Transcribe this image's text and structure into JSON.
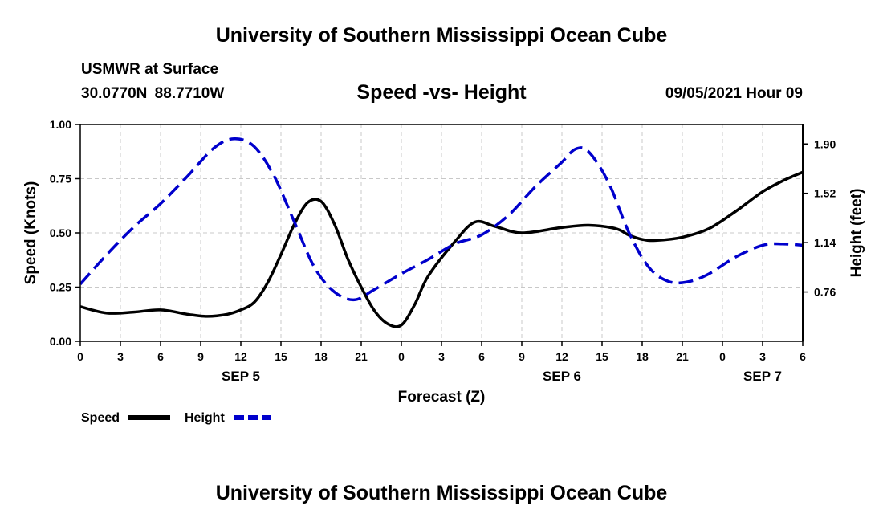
{
  "header": {
    "title": "University of Southern Mississippi Ocean Cube",
    "station": "USMWR at Surface",
    "coordinates": "30.0770N  88.7710W",
    "datetime": "09/05/2021 Hour 09"
  },
  "footer": {
    "title": "University of Southern Mississippi Ocean Cube"
  },
  "colors": {
    "speed": "#000000",
    "height": "#0000cc",
    "grid": "#c8c8c8"
  },
  "chart_data": {
    "type": "line",
    "title": "Speed -vs- Height",
    "xlabel": "Forecast (Z)",
    "ylabel": "Speed (Knots)",
    "y2label": "Height (feet)",
    "x_hours": [
      0,
      54
    ],
    "x_ticks": [
      "0",
      "3",
      "6",
      "9",
      "12",
      "15",
      "18",
      "21",
      "0",
      "3",
      "6",
      "9",
      "12",
      "15",
      "18",
      "21",
      "0",
      "3",
      "6"
    ],
    "date_labels": [
      {
        "label": "SEP 5",
        "hour": 12
      },
      {
        "label": "SEP 6",
        "hour": 36
      },
      {
        "label": "SEP 7",
        "hour": 51
      }
    ],
    "ylim": [
      0,
      1.0
    ],
    "y_ticks": [
      "0.00",
      "0.25",
      "0.50",
      "0.75",
      "1.00"
    ],
    "y2lim": [
      0.38,
      2.05
    ],
    "y2_ticks": [
      "0.76",
      "1.14",
      "1.52",
      "1.90"
    ],
    "legend": [
      "Speed",
      "Height"
    ],
    "series": [
      {
        "name": "Speed",
        "axis": "left",
        "style": "solid",
        "points": [
          [
            0,
            0.16
          ],
          [
            2,
            0.13
          ],
          [
            4,
            0.135
          ],
          [
            6,
            0.145
          ],
          [
            8,
            0.125
          ],
          [
            9.5,
            0.115
          ],
          [
            11,
            0.125
          ],
          [
            12,
            0.145
          ],
          [
            13,
            0.18
          ],
          [
            14,
            0.27
          ],
          [
            15,
            0.4
          ],
          [
            16,
            0.54
          ],
          [
            17,
            0.64
          ],
          [
            18,
            0.645
          ],
          [
            19,
            0.54
          ],
          [
            20,
            0.38
          ],
          [
            21,
            0.25
          ],
          [
            22,
            0.14
          ],
          [
            23,
            0.08
          ],
          [
            24,
            0.075
          ],
          [
            25,
            0.17
          ],
          [
            26,
            0.3
          ],
          [
            28,
            0.46
          ],
          [
            29.5,
            0.55
          ],
          [
            31,
            0.53
          ],
          [
            33,
            0.5
          ],
          [
            36,
            0.525
          ],
          [
            38,
            0.535
          ],
          [
            40,
            0.52
          ],
          [
            41,
            0.49
          ],
          [
            42,
            0.47
          ],
          [
            43,
            0.465
          ],
          [
            45,
            0.48
          ],
          [
            47,
            0.52
          ],
          [
            49,
            0.6
          ],
          [
            51,
            0.69
          ],
          [
            52.5,
            0.74
          ],
          [
            54,
            0.78
          ]
        ]
      },
      {
        "name": "Height",
        "axis": "right",
        "style": "dashed",
        "points": [
          [
            0,
            0.82
          ],
          [
            2,
            1.05
          ],
          [
            4,
            1.26
          ],
          [
            6,
            1.44
          ],
          [
            8,
            1.65
          ],
          [
            10,
            1.87
          ],
          [
            11.5,
            1.94
          ],
          [
            13,
            1.88
          ],
          [
            14.5,
            1.65
          ],
          [
            16,
            1.3
          ],
          [
            17.5,
            0.95
          ],
          [
            19,
            0.76
          ],
          [
            20.5,
            0.7
          ],
          [
            22,
            0.78
          ],
          [
            24,
            0.9
          ],
          [
            26,
            1.01
          ],
          [
            28,
            1.13
          ],
          [
            30,
            1.2
          ],
          [
            32,
            1.35
          ],
          [
            34,
            1.57
          ],
          [
            36,
            1.76
          ],
          [
            37,
            1.86
          ],
          [
            38,
            1.84
          ],
          [
            39.5,
            1.6
          ],
          [
            41,
            1.22
          ],
          [
            42.5,
            0.95
          ],
          [
            44,
            0.84
          ],
          [
            45.5,
            0.84
          ],
          [
            47,
            0.9
          ],
          [
            49,
            1.03
          ],
          [
            51,
            1.12
          ],
          [
            52.5,
            1.13
          ],
          [
            54,
            1.12
          ]
        ]
      }
    ]
  }
}
